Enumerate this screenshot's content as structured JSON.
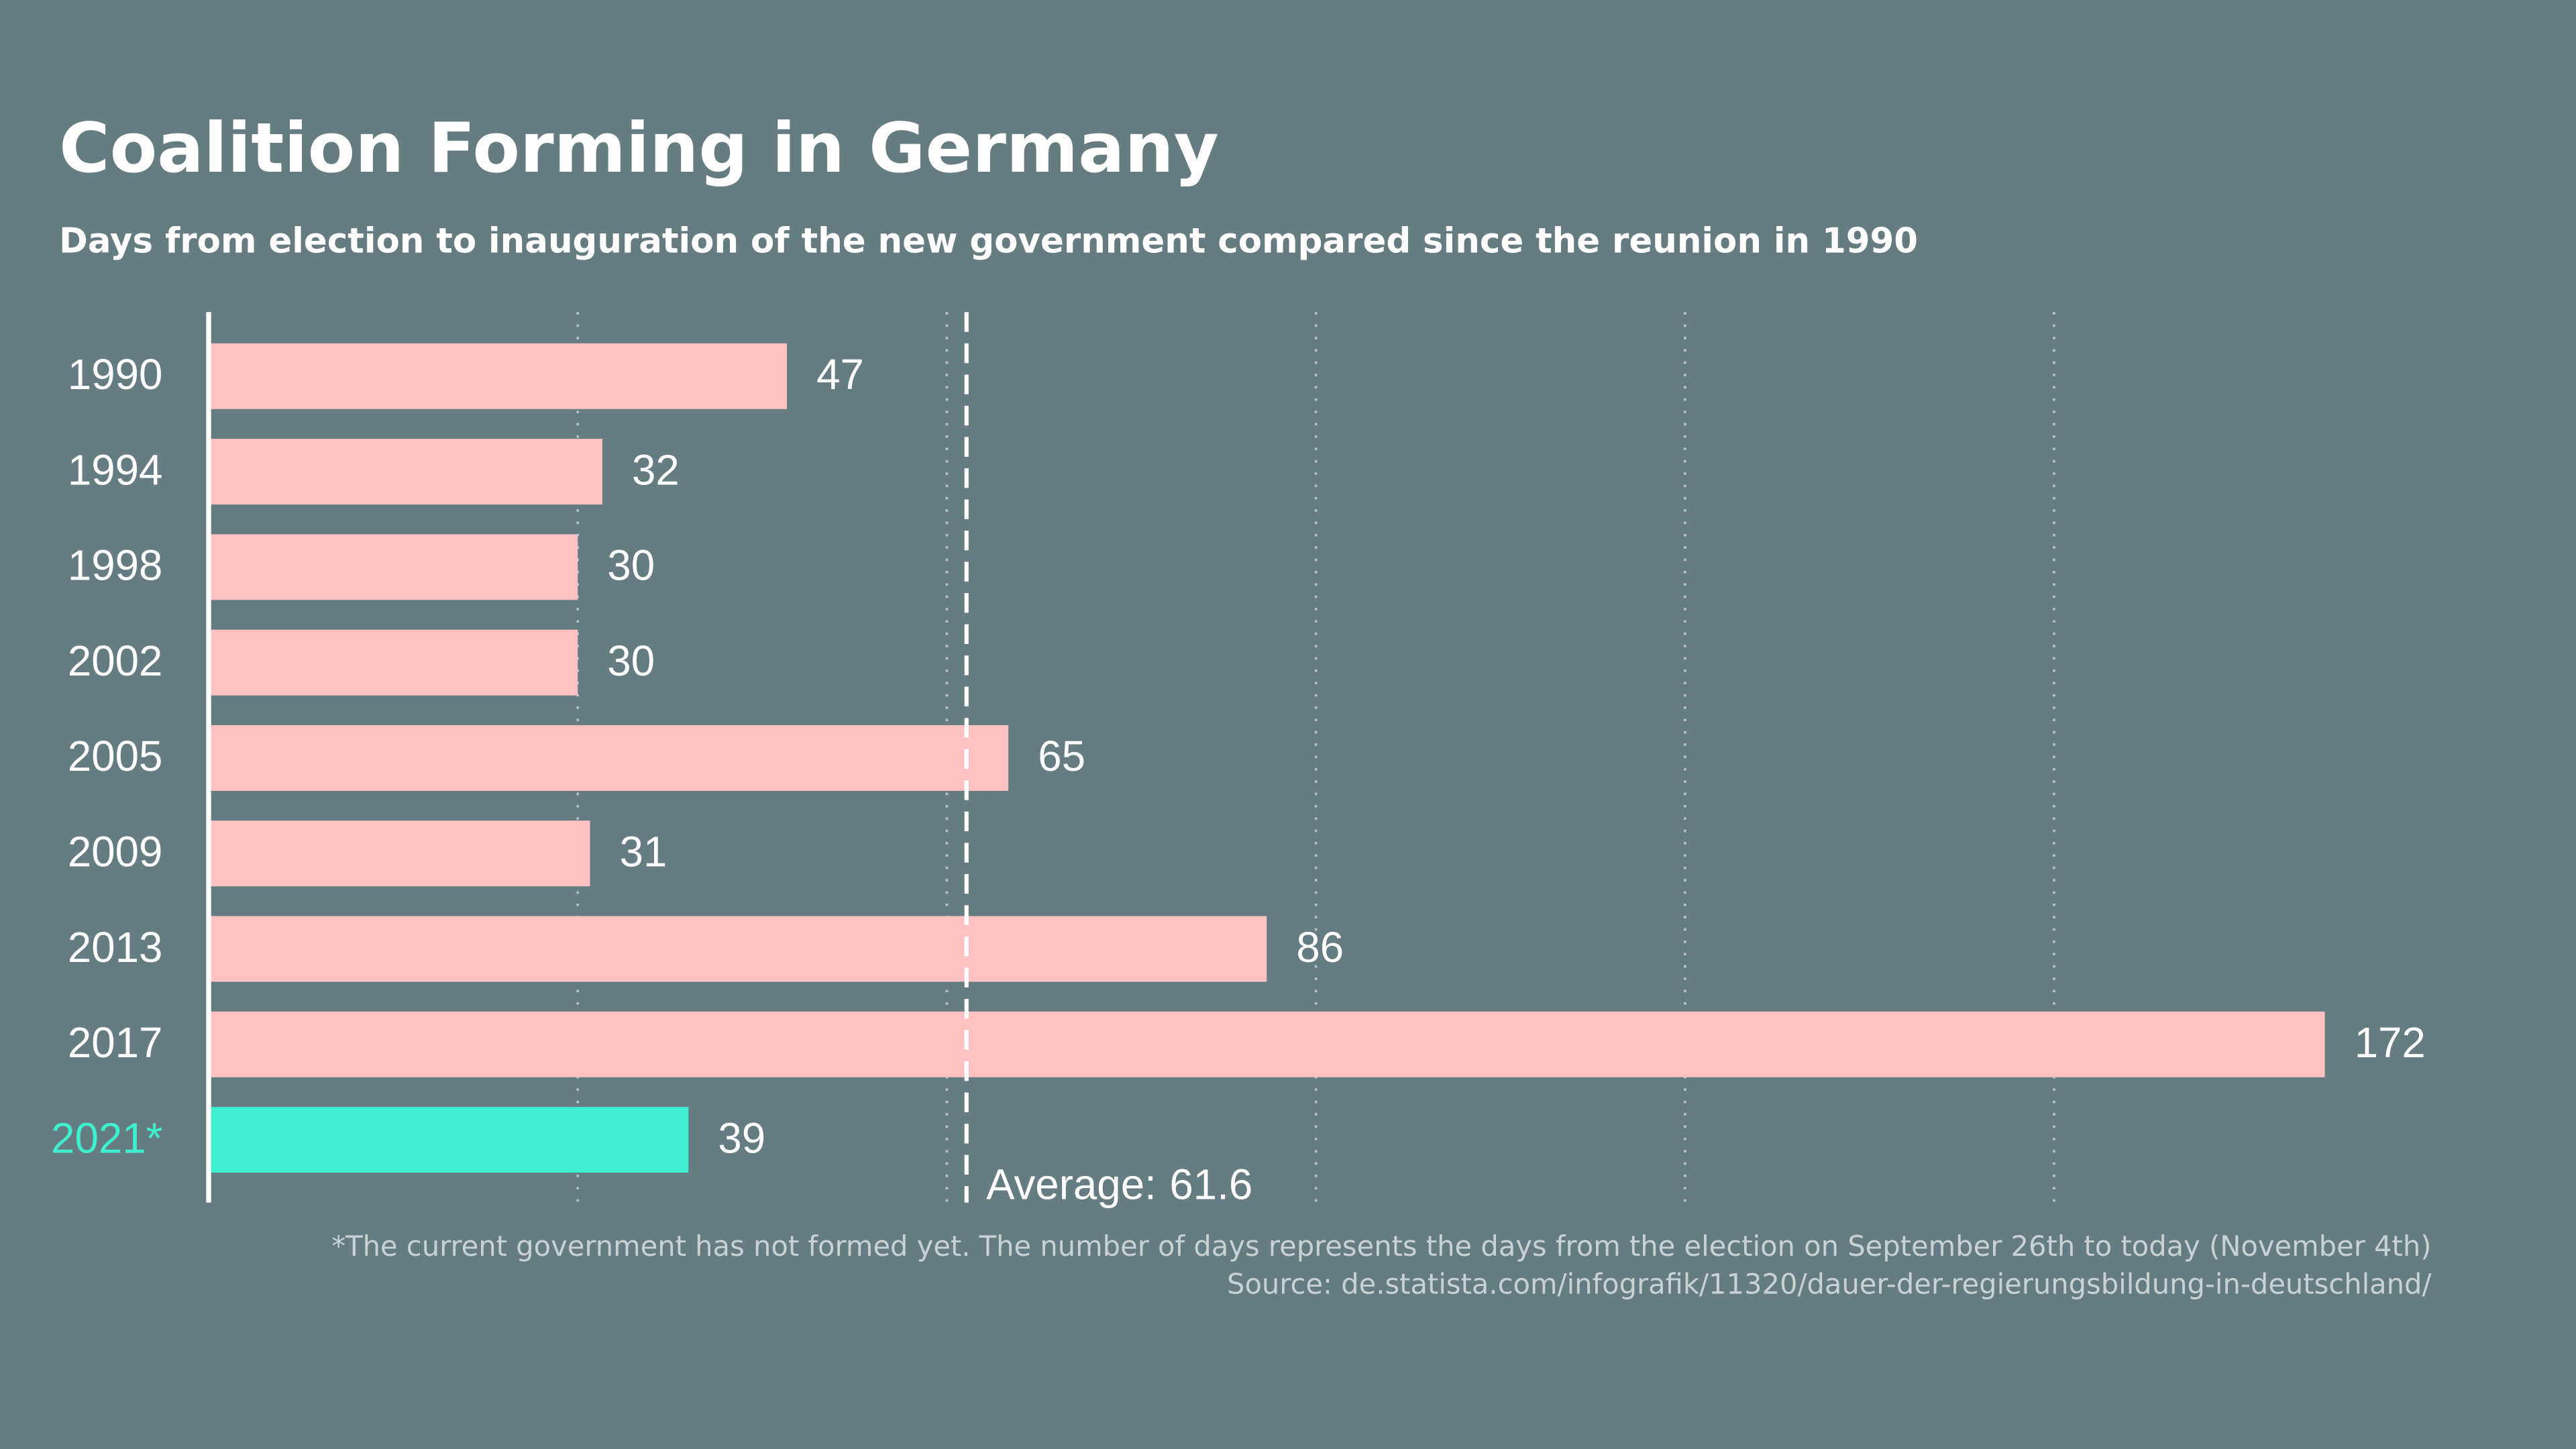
{
  "chart_data": {
    "type": "bar",
    "orientation": "horizontal",
    "title": "Coalition Forming in Germany",
    "subtitle": "Days from election to inauguration of the new government compared since the reunion in 1990",
    "categories": [
      "1990",
      "1994",
      "1998",
      "2002",
      "2005",
      "2009",
      "2013",
      "2017",
      "2021*"
    ],
    "values": [
      47,
      32,
      30,
      30,
      65,
      31,
      86,
      172,
      39
    ],
    "colors": [
      "#ffc2c2",
      "#ffc2c2",
      "#ffc2c2",
      "#ffc2c2",
      "#ffc2c2",
      "#ffc2c2",
      "#ffc2c2",
      "#ffc2c2",
      "#3ef0d0"
    ],
    "xlim": [
      0,
      180
    ],
    "xticks": [
      0,
      30,
      60,
      90,
      120,
      150
    ],
    "grid": true,
    "average_label": "Average:",
    "average": 61.6,
    "footnote": "*The current government has not formed yet. The number of days represents the days from the election on September 26th to today (November 4th)",
    "source": "Source: de.statista.com/infografik/11320/dauer-der-regierungsbildung-in-deutschland/"
  }
}
